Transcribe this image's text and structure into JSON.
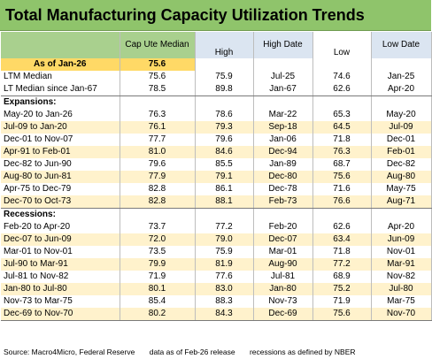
{
  "title": "Total Manufacturing Capacity Utilization Trends",
  "headers": {
    "cap_ute_median": "Cap Ute Median",
    "high": "High",
    "high_date": "High Date",
    "low": "Low",
    "low_date": "Low Date"
  },
  "as_of": {
    "label": "As of Jan-26",
    "value": "75.6"
  },
  "ltm": [
    {
      "label": "LTM Median",
      "median": "75.6",
      "high": "75.9",
      "high_date": "Jul-25",
      "low": "74.6",
      "low_date": "Jan-25"
    },
    {
      "label": "LT Median since Jan-67",
      "median": "78.5",
      "high": "89.8",
      "high_date": "Jan-67",
      "low": "62.6",
      "low_date": "Apr-20"
    }
  ],
  "expansions_label": "Expansions:",
  "expansions": [
    {
      "label": "May-20 to Jan-26",
      "median": "76.3",
      "high": "78.6",
      "high_date": "Mar-22",
      "low": "65.3",
      "low_date": "May-20"
    },
    {
      "label": "Jul-09 to Jan-20",
      "median": "76.1",
      "high": "79.3",
      "high_date": "Sep-18",
      "low": "64.5",
      "low_date": "Jul-09"
    },
    {
      "label": "Dec-01 to Nov-07",
      "median": "77.7",
      "high": "79.6",
      "high_date": "Jan-06",
      "low": "71.8",
      "low_date": "Dec-01"
    },
    {
      "label": "Apr-91 to Feb-01",
      "median": "81.0",
      "high": "84.6",
      "high_date": "Dec-94",
      "low": "76.3",
      "low_date": "Feb-01"
    },
    {
      "label": "Dec-82 to Jun-90",
      "median": "79.6",
      "high": "85.5",
      "high_date": "Jan-89",
      "low": "68.7",
      "low_date": "Dec-82"
    },
    {
      "label": "Aug-80 to Jun-81",
      "median": "77.9",
      "high": "79.1",
      "high_date": "Dec-80",
      "low": "75.6",
      "low_date": "Aug-80"
    },
    {
      "label": "Apr-75 to Dec-79",
      "median": "82.8",
      "high": "86.1",
      "high_date": "Dec-78",
      "low": "71.6",
      "low_date": "May-75"
    },
    {
      "label": "Dec-70 to Oct-73",
      "median": "82.8",
      "high": "88.1",
      "high_date": "Feb-73",
      "low": "76.6",
      "low_date": "Aug-71"
    }
  ],
  "recessions_label": "Recessions:",
  "recessions": [
    {
      "label": "Feb-20 to Apr-20",
      "median": "73.7",
      "high": "77.2",
      "high_date": "Feb-20",
      "low": "62.6",
      "low_date": "Apr-20"
    },
    {
      "label": "Dec-07 to Jun-09",
      "median": "72.0",
      "high": "79.0",
      "high_date": "Dec-07",
      "low": "63.4",
      "low_date": "Jun-09"
    },
    {
      "label": "Mar-01 to Nov-01",
      "median": "73.5",
      "high": "75.9",
      "high_date": "Mar-01",
      "low": "71.8",
      "low_date": "Nov-01"
    },
    {
      "label": "Jul-90 to Mar-91",
      "median": "79.9",
      "high": "81.9",
      "high_date": "Aug-90",
      "low": "77.2",
      "low_date": "Mar-91"
    },
    {
      "label": "Jul-81 to Nov-82",
      "median": "71.9",
      "high": "77.6",
      "high_date": "Jul-81",
      "low": "68.9",
      "low_date": "Nov-82"
    },
    {
      "label": "Jan-80 to Jul-80",
      "median": "80.1",
      "high": "83.0",
      "high_date": "Jan-80",
      "low": "75.2",
      "low_date": "Jul-80"
    },
    {
      "label": "Nov-73 to Mar-75",
      "median": "85.4",
      "high": "88.3",
      "high_date": "Nov-73",
      "low": "71.9",
      "low_date": "Mar-75"
    },
    {
      "label": "Dec-69 to Nov-70",
      "median": "80.2",
      "high": "84.3",
      "high_date": "Dec-69",
      "low": "75.6",
      "low_date": "Nov-70"
    }
  ],
  "footer": {
    "source": "Source: Macro4Micro, Federal Reserve",
    "release": "data as of Feb-26 release",
    "note": "recessions as defined by NBER"
  }
}
